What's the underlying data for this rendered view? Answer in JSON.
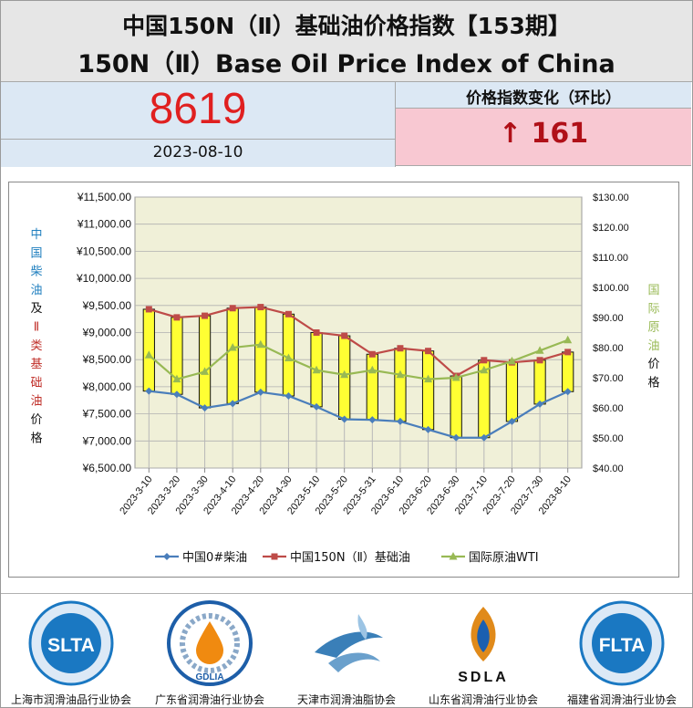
{
  "header": {
    "title_cn": "中国150N（Ⅱ）基础油价格指数【153期】",
    "title_en": "150N（Ⅱ）Base Oil Price Index of China"
  },
  "index": {
    "value": "8619",
    "date": "2023-08-10"
  },
  "change": {
    "label": "价格指数变化（环比）",
    "text": "↑ 161"
  },
  "chart_data": {
    "type": "line",
    "categories": [
      "2023-3-10",
      "2023-3-20",
      "2023-3-30",
      "2023-4-10",
      "2023-4-20",
      "2023-4-30",
      "2023-5-10",
      "2023-5-20",
      "2023-5-31",
      "2023-6-10",
      "2023-6-20",
      "2023-6-30",
      "2023-7-10",
      "2023-7-20",
      "2023-7-30",
      "2023-8-10"
    ],
    "series": [
      {
        "name": "中国0#柴油",
        "axis": "left",
        "color": "#4a7ebb",
        "marker": "diamond",
        "values": [
          7920,
          7860,
          7610,
          7690,
          7900,
          7830,
          7630,
          7400,
          7390,
          7360,
          7210,
          7060,
          7060,
          7360,
          7680,
          7910
        ]
      },
      {
        "name": "中国150N（Ⅱ）基础油",
        "axis": "left",
        "color": "#be4b48",
        "marker": "square",
        "values": [
          9430,
          9280,
          9310,
          9450,
          9470,
          9340,
          9000,
          8940,
          8600,
          8710,
          8660,
          8200,
          8490,
          8450,
          8490,
          8640
        ]
      },
      {
        "name": "国际原油WTI",
        "axis": "right",
        "color": "#98b954",
        "marker": "triangle",
        "values": [
          77.5,
          69.5,
          72.0,
          80.0,
          81.0,
          76.5,
          72.5,
          71.0,
          72.5,
          71.0,
          69.5,
          70.0,
          72.5,
          75.5,
          79.0,
          82.5
        ]
      }
    ],
    "updown_bars": {
      "between": [
        "中国0#柴油",
        "中国150N（Ⅱ）基础油"
      ],
      "color": "#ffff33"
    },
    "ylabel_left_lines": [
      {
        "text": "中",
        "color": "#1f7fbf"
      },
      {
        "text": "国",
        "color": "#1f7fbf"
      },
      {
        "text": "柴",
        "color": "#1f7fbf"
      },
      {
        "text": "油",
        "color": "#1f7fbf"
      },
      {
        "text": "及",
        "color": "#111111"
      },
      {
        "text": "Ⅱ",
        "color": "#c0302a"
      },
      {
        "text": "类",
        "color": "#c0302a"
      },
      {
        "text": "基",
        "color": "#c0302a"
      },
      {
        "text": "础",
        "color": "#c0302a"
      },
      {
        "text": "油",
        "color": "#c0302a"
      },
      {
        "text": "价",
        "color": "#111111"
      },
      {
        "text": "格",
        "color": "#111111"
      }
    ],
    "ylabel_right_lines": [
      {
        "text": "国",
        "color": "#98b954"
      },
      {
        "text": "际",
        "color": "#98b954"
      },
      {
        "text": "原",
        "color": "#98b954"
      },
      {
        "text": "油",
        "color": "#98b954"
      },
      {
        "text": "价",
        "color": "#111111"
      },
      {
        "text": "格",
        "color": "#111111"
      }
    ],
    "ylim_left": [
      6500,
      11500
    ],
    "ylim_right": [
      40,
      130
    ],
    "yticks_left": [
      6500,
      7000,
      7500,
      8000,
      8500,
      9000,
      9500,
      10000,
      10500,
      11000,
      11500
    ],
    "yticks_right": [
      40,
      50,
      60,
      70,
      80,
      90,
      100,
      110,
      120,
      130
    ],
    "ytick_labels_left": [
      "¥6,500.00",
      "¥7,000.00",
      "¥7,500.00",
      "¥8,000.00",
      "¥8,500.00",
      "¥9,000.00",
      "¥9,500.00",
      "¥10,000.00",
      "¥10,500.00",
      "¥11,000.00",
      "¥11,500.00"
    ],
    "ytick_labels_right": [
      "$40.00",
      "$50.00",
      "$60.00",
      "$70.00",
      "$80.00",
      "$90.00",
      "$100.00",
      "$110.00",
      "$120.00",
      "$130.00"
    ],
    "grid": "horizontal",
    "legend_position": "bottom",
    "plot_background": "#f0f0d8"
  },
  "footer": {
    "logos": [
      {
        "caption": "上海市润滑油品行业协会",
        "mark": "SLTA",
        "color": "#1a78c2",
        "icon": "slta-logo-icon"
      },
      {
        "caption": "广东省润滑油行业协会",
        "mark": "GDLIA",
        "color": "#1d5ea8",
        "icon": "gdlia-logo-icon"
      },
      {
        "caption": "天津市润滑油脂协会",
        "mark": "",
        "color": "#3a7fb8",
        "icon": "tianjin-logo-icon"
      },
      {
        "caption": "山东省润滑油行业协会",
        "mark": "SDLA",
        "color": "#e08a1a",
        "icon": "sdla-logo-icon"
      },
      {
        "caption": "福建省润滑油行业协会",
        "mark": "FLTA",
        "color": "#1a78c2",
        "icon": "flta-logo-icon"
      }
    ]
  }
}
